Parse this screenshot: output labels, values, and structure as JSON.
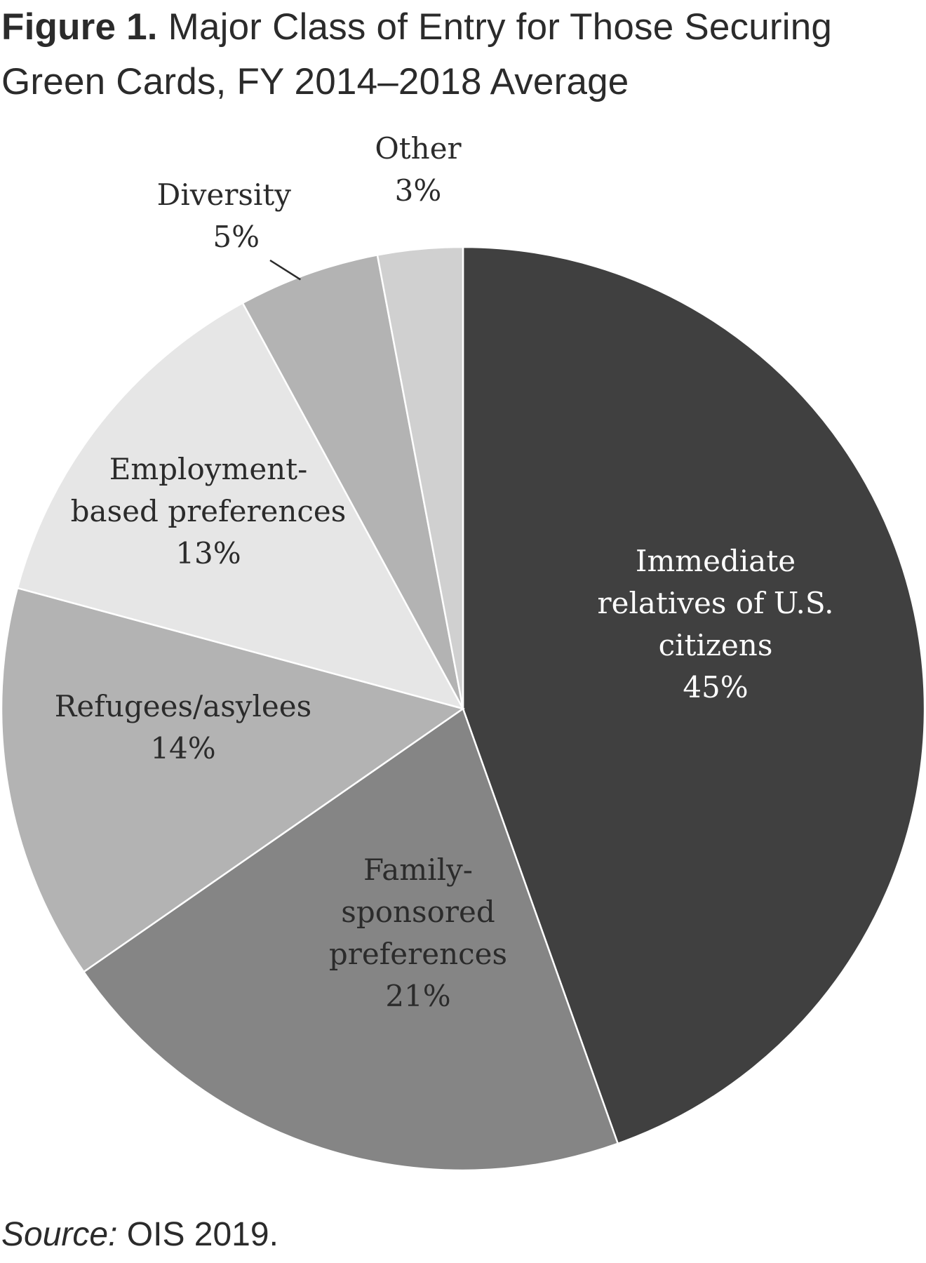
{
  "header": {
    "figure_label": "Figure 1.",
    "figure_title_line1": "Major Class of Entry for Those Securing",
    "figure_title_line2": "Green Cards, FY 2014–2018 Average"
  },
  "footer": {
    "source_label": "Source:",
    "source_text": "OIS 2019."
  },
  "chart_data": {
    "type": "pie",
    "title": "Major Class of Entry for Those Securing Green Cards, FY 2014–2018 Average",
    "start_angle_deg": 0,
    "direction": "clockwise",
    "slices": [
      {
        "label_lines": [
          "Immediate",
          "relatives of U.S.",
          "citizens"
        ],
        "value": 45,
        "value_label": "45%",
        "color": "#404040",
        "text_color": "#ffffff"
      },
      {
        "label_lines": [
          "Family-",
          "sponsored",
          "preferences"
        ],
        "value": 21,
        "value_label": "21%",
        "color": "#858585",
        "text_color": "#2b2b2b"
      },
      {
        "label_lines": [
          "Refugees/asylees"
        ],
        "value": 14,
        "value_label": "14%",
        "color": "#b3b3b3",
        "text_color": "#2b2b2b"
      },
      {
        "label_lines": [
          "Employment-",
          "based preferences"
        ],
        "value": 13,
        "value_label": "13%",
        "color": "#e6e6e6",
        "text_color": "#2b2b2b"
      },
      {
        "label_lines": [
          "Diversity"
        ],
        "value": 5,
        "value_label": "5%",
        "color": "#b3b3b3",
        "text_color": "#2b2b2b",
        "leader_line": true
      },
      {
        "label_lines": [
          "Other"
        ],
        "value": 3,
        "value_label": "3%",
        "color": "#d0d0d0",
        "text_color": "#2b2b2b"
      }
    ]
  }
}
